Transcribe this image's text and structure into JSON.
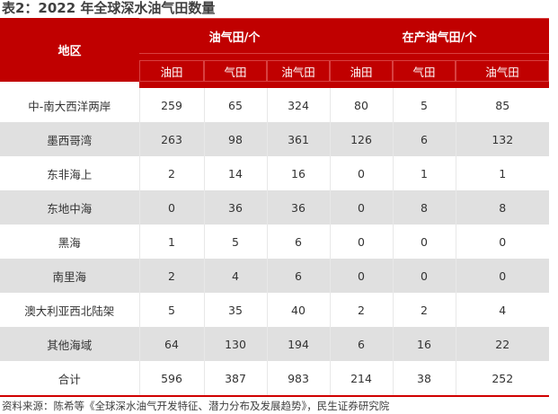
{
  "title": "表2：2022 年全球深水油气田数量",
  "header": {
    "region": "地区",
    "group1": "油气田/个",
    "group2": "在产油气田/个",
    "sub": [
      "油田",
      "气田",
      "油气田",
      "油田",
      "气田",
      "油气田"
    ]
  },
  "rows": [
    [
      "中-南大西洋两岸",
      "259",
      "65",
      "324",
      "80",
      "5",
      "85"
    ],
    [
      "墨西哥湾",
      "263",
      "98",
      "361",
      "126",
      "6",
      "132"
    ],
    [
      "东非海上",
      "2",
      "14",
      "16",
      "0",
      "1",
      "1"
    ],
    [
      "东地中海",
      "0",
      "36",
      "36",
      "0",
      "8",
      "8"
    ],
    [
      "黑海",
      "1",
      "5",
      "6",
      "0",
      "0",
      "0"
    ],
    [
      "南里海",
      "2",
      "4",
      "6",
      "0",
      "0",
      "0"
    ],
    [
      "澳大利亚西北陆架",
      "5",
      "35",
      "40",
      "2",
      "2",
      "4"
    ],
    [
      "其他海域",
      "64",
      "130",
      "194",
      "6",
      "16",
      "22"
    ],
    [
      "合计",
      "596",
      "387",
      "983",
      "214",
      "38",
      "252"
    ]
  ],
  "source": "资料来源：陈希等《全球深水油气开发特征、潜力分布及发展趋势》，民生证券研究院",
  "colors": {
    "header": "#c00000",
    "stripe": "#e0e0e0",
    "rule": "#d00000"
  }
}
